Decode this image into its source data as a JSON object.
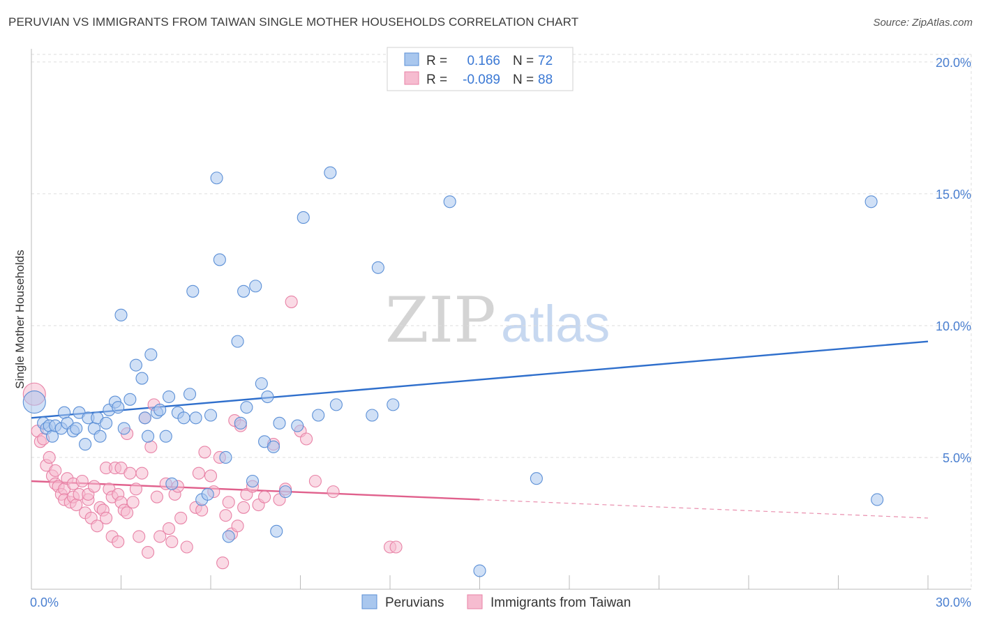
{
  "title": "PERUVIAN VS IMMIGRANTS FROM TAIWAN SINGLE MOTHER HOUSEHOLDS CORRELATION CHART",
  "source": "Source: ZipAtlas.com",
  "watermark": {
    "zip": "ZIP",
    "atlas": "atlas"
  },
  "colors": {
    "blue_fill": "#a9c7ee",
    "blue_stroke": "#5b8fd6",
    "blue_line": "#2f6fcc",
    "pink_fill": "#f6bcd0",
    "pink_stroke": "#e882a6",
    "pink_line": "#e0608c",
    "grid": "#dddddd",
    "label": "#4a7fd0"
  },
  "legend": {
    "rows": [
      {
        "r_label": "R =",
        "r_value": "0.166",
        "n_label": "N =",
        "n_value": "72"
      },
      {
        "r_label": "R =",
        "r_value": "-0.089",
        "n_label": "N =",
        "n_value": "88"
      }
    ]
  },
  "bottom_legend": [
    "Peruvians",
    "Immigrants from Taiwan"
  ],
  "chart_data": {
    "type": "scatter",
    "xlabel": "",
    "ylabel": "Single Mother Households",
    "xlim": [
      0,
      30
    ],
    "ylim": [
      0,
      20.5
    ],
    "x_tick_labels": [
      {
        "value": 0,
        "label": "0.0%"
      },
      {
        "value": 30,
        "label": "30.0%"
      }
    ],
    "y_tick_labels": [
      {
        "value": 5,
        "label": "5.0%"
      },
      {
        "value": 10,
        "label": "10.0%"
      },
      {
        "value": 15,
        "label": "15.0%"
      },
      {
        "value": 20,
        "label": "20.0%"
      }
    ],
    "series": [
      {
        "name": "Peruvians",
        "trend": {
          "x": [
            0,
            30
          ],
          "y": [
            6.5,
            9.4
          ],
          "dashed_from": null
        },
        "points": [
          [
            0.1,
            7.1
          ],
          [
            0.4,
            6.3
          ],
          [
            0.5,
            6.1
          ],
          [
            0.6,
            6.2
          ],
          [
            0.7,
            5.8
          ],
          [
            0.8,
            6.2
          ],
          [
            1.0,
            6.1
          ],
          [
            1.1,
            6.7
          ],
          [
            1.2,
            6.3
          ],
          [
            1.4,
            6.0
          ],
          [
            1.5,
            6.1
          ],
          [
            1.6,
            6.7
          ],
          [
            1.8,
            5.5
          ],
          [
            1.9,
            6.5
          ],
          [
            2.1,
            6.1
          ],
          [
            2.2,
            6.5
          ],
          [
            2.3,
            5.8
          ],
          [
            2.5,
            6.3
          ],
          [
            2.6,
            6.8
          ],
          [
            2.8,
            7.1
          ],
          [
            2.9,
            6.9
          ],
          [
            3.1,
            6.1
          ],
          [
            3.0,
            10.4
          ],
          [
            3.3,
            7.2
          ],
          [
            3.5,
            8.5
          ],
          [
            3.7,
            8.0
          ],
          [
            3.8,
            6.5
          ],
          [
            3.9,
            5.8
          ],
          [
            4.0,
            8.9
          ],
          [
            4.2,
            6.7
          ],
          [
            4.3,
            6.8
          ],
          [
            4.5,
            5.8
          ],
          [
            4.6,
            7.3
          ],
          [
            4.7,
            4.0
          ],
          [
            4.9,
            6.7
          ],
          [
            5.1,
            6.5
          ],
          [
            5.3,
            7.4
          ],
          [
            5.4,
            11.3
          ],
          [
            5.5,
            6.5
          ],
          [
            5.7,
            3.4
          ],
          [
            5.9,
            3.6
          ],
          [
            6.0,
            6.6
          ],
          [
            6.2,
            15.6
          ],
          [
            6.3,
            12.5
          ],
          [
            6.5,
            5.0
          ],
          [
            6.6,
            2.0
          ],
          [
            6.9,
            9.4
          ],
          [
            7.0,
            6.3
          ],
          [
            7.1,
            11.3
          ],
          [
            7.2,
            6.9
          ],
          [
            7.4,
            4.1
          ],
          [
            7.5,
            11.5
          ],
          [
            7.7,
            7.8
          ],
          [
            7.8,
            5.6
          ],
          [
            7.9,
            7.3
          ],
          [
            8.1,
            5.4
          ],
          [
            8.2,
            2.2
          ],
          [
            8.3,
            6.3
          ],
          [
            8.5,
            3.7
          ],
          [
            8.9,
            6.2
          ],
          [
            9.1,
            14.1
          ],
          [
            9.6,
            6.6
          ],
          [
            10.0,
            15.8
          ],
          [
            10.2,
            7.0
          ],
          [
            11.4,
            6.6
          ],
          [
            11.6,
            12.2
          ],
          [
            12.1,
            7.0
          ],
          [
            14.0,
            14.7
          ],
          [
            15.0,
            0.7
          ],
          [
            16.9,
            4.2
          ],
          [
            28.1,
            14.7
          ],
          [
            28.3,
            3.4
          ]
        ]
      },
      {
        "name": "Immigrants from Taiwan",
        "trend": {
          "x": [
            0,
            30
          ],
          "y": [
            4.1,
            2.7
          ],
          "dashed_from": 15
        },
        "points": [
          [
            0.1,
            7.4
          ],
          [
            0.2,
            6.0
          ],
          [
            0.3,
            5.6
          ],
          [
            0.4,
            5.7
          ],
          [
            0.5,
            4.7
          ],
          [
            0.6,
            5.0
          ],
          [
            0.7,
            4.3
          ],
          [
            0.8,
            4.0
          ],
          [
            0.8,
            4.5
          ],
          [
            0.9,
            3.9
          ],
          [
            1.0,
            3.6
          ],
          [
            1.1,
            3.8
          ],
          [
            1.1,
            3.4
          ],
          [
            1.2,
            4.2
          ],
          [
            1.3,
            3.3
          ],
          [
            1.4,
            4.0
          ],
          [
            1.4,
            3.5
          ],
          [
            1.5,
            3.2
          ],
          [
            1.6,
            3.6
          ],
          [
            1.7,
            4.1
          ],
          [
            1.8,
            2.9
          ],
          [
            1.9,
            3.4
          ],
          [
            1.9,
            3.6
          ],
          [
            2.0,
            2.7
          ],
          [
            2.1,
            3.9
          ],
          [
            2.2,
            2.4
          ],
          [
            2.3,
            3.1
          ],
          [
            2.4,
            3.0
          ],
          [
            2.5,
            4.6
          ],
          [
            2.5,
            2.7
          ],
          [
            2.6,
            3.8
          ],
          [
            2.7,
            3.5
          ],
          [
            2.7,
            2.0
          ],
          [
            2.8,
            4.6
          ],
          [
            2.9,
            3.6
          ],
          [
            2.9,
            1.8
          ],
          [
            3.0,
            4.6
          ],
          [
            3.0,
            3.3
          ],
          [
            3.1,
            3.0
          ],
          [
            3.2,
            2.9
          ],
          [
            3.2,
            5.9
          ],
          [
            3.3,
            4.4
          ],
          [
            3.4,
            3.3
          ],
          [
            3.5,
            3.8
          ],
          [
            3.6,
            2.0
          ],
          [
            3.7,
            4.4
          ],
          [
            3.8,
            6.5
          ],
          [
            3.9,
            1.4
          ],
          [
            4.0,
            5.4
          ],
          [
            4.1,
            7.0
          ],
          [
            4.2,
            3.5
          ],
          [
            4.3,
            2.0
          ],
          [
            4.5,
            4.0
          ],
          [
            4.6,
            2.3
          ],
          [
            4.7,
            1.8
          ],
          [
            4.8,
            3.6
          ],
          [
            4.9,
            3.9
          ],
          [
            5.0,
            2.7
          ],
          [
            5.2,
            1.6
          ],
          [
            5.5,
            3.1
          ],
          [
            5.6,
            4.4
          ],
          [
            5.7,
            3.0
          ],
          [
            5.8,
            5.2
          ],
          [
            6.0,
            4.3
          ],
          [
            6.1,
            3.7
          ],
          [
            6.3,
            5.0
          ],
          [
            6.4,
            1.0
          ],
          [
            6.5,
            2.8
          ],
          [
            6.6,
            3.3
          ],
          [
            6.7,
            2.1
          ],
          [
            6.8,
            6.4
          ],
          [
            6.9,
            2.4
          ],
          [
            7.0,
            6.2
          ],
          [
            7.1,
            3.1
          ],
          [
            7.2,
            3.6
          ],
          [
            7.4,
            3.9
          ],
          [
            7.6,
            3.2
          ],
          [
            7.8,
            3.5
          ],
          [
            8.1,
            5.5
          ],
          [
            8.3,
            3.4
          ],
          [
            8.5,
            3.8
          ],
          [
            8.7,
            10.9
          ],
          [
            9.0,
            6.0
          ],
          [
            9.2,
            5.7
          ],
          [
            9.5,
            4.1
          ],
          [
            10.1,
            3.7
          ],
          [
            12.0,
            1.6
          ],
          [
            12.2,
            1.6
          ]
        ]
      }
    ]
  }
}
